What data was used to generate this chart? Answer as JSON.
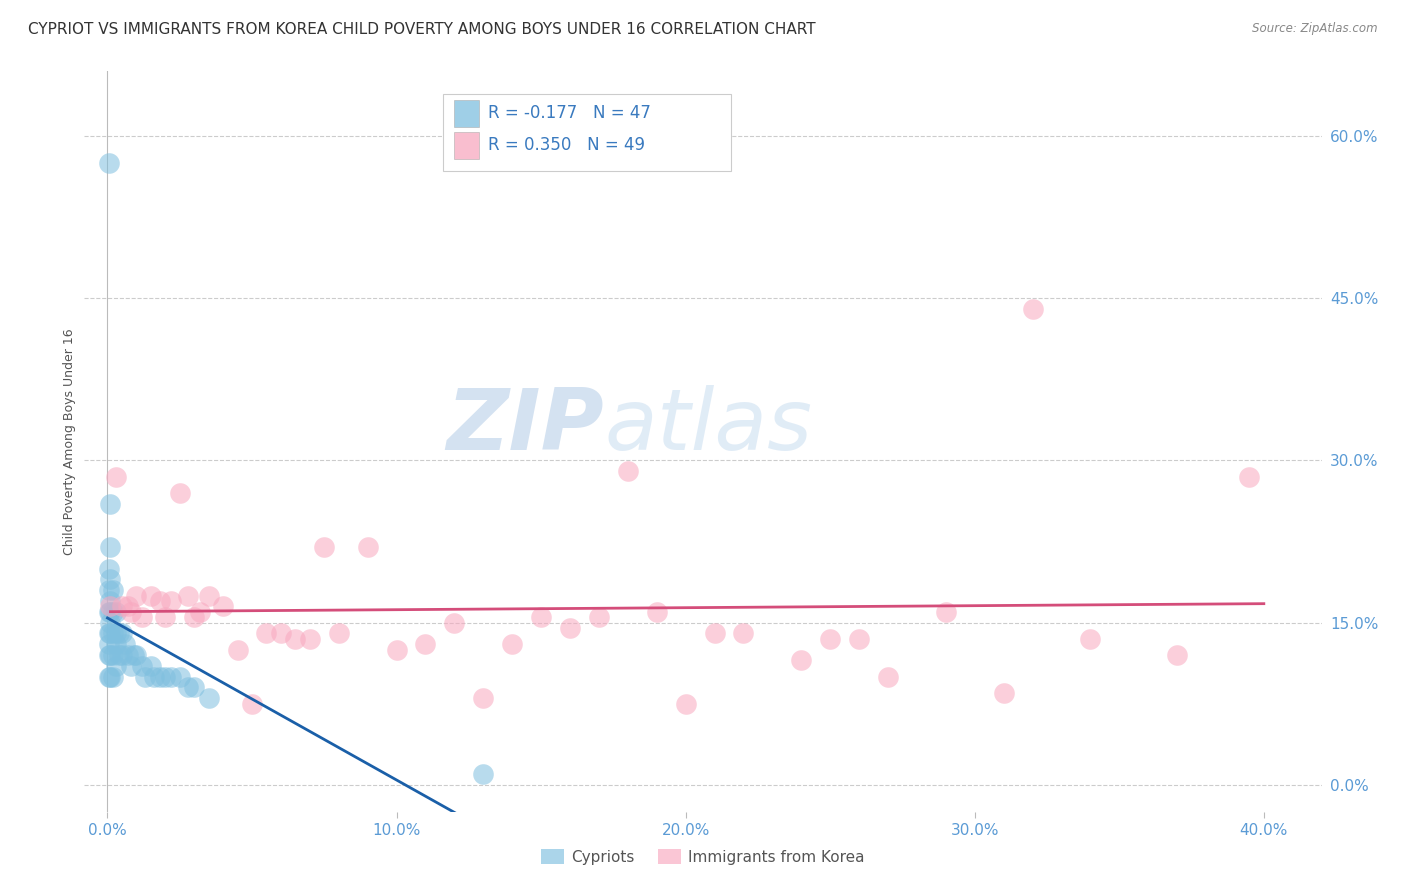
{
  "title": "CYPRIOT VS IMMIGRANTS FROM KOREA CHILD POVERTY AMONG BOYS UNDER 16 CORRELATION CHART",
  "source": "Source: ZipAtlas.com",
  "xlabel_ticks": [
    "0.0%",
    "10.0%",
    "20.0%",
    "30.0%",
    "40.0%"
  ],
  "ylabel_ticks": [
    "0.0%",
    "15.0%",
    "30.0%",
    "45.0%",
    "60.0%"
  ],
  "xlabel_tick_vals": [
    0.0,
    0.1,
    0.2,
    0.3,
    0.4
  ],
  "ylabel_tick_vals": [
    0.0,
    0.15,
    0.3,
    0.45,
    0.6
  ],
  "ylabel": "Child Poverty Among Boys Under 16",
  "legend_label1": "Cypriots",
  "legend_label2": "Immigrants from Korea",
  "watermark_zip": "ZIP",
  "watermark_atlas": "atlas",
  "R1": "-0.177",
  "N1": "47",
  "R2": "0.350",
  "N2": "49",
  "cypriot_color": "#7fbfdf",
  "korea_color": "#f8a8bf",
  "cypriot_line_color": "#1a5fa8",
  "korea_line_color": "#d44d7a",
  "cypriot_x": [
    0.0005,
    0.0005,
    0.0005,
    0.0005,
    0.0005,
    0.0005,
    0.0005,
    0.0005,
    0.001,
    0.001,
    0.001,
    0.001,
    0.001,
    0.001,
    0.001,
    0.001,
    0.001,
    0.002,
    0.002,
    0.002,
    0.002,
    0.002,
    0.003,
    0.003,
    0.003,
    0.003,
    0.004,
    0.004,
    0.005,
    0.005,
    0.006,
    0.007,
    0.008,
    0.009,
    0.01,
    0.012,
    0.013,
    0.015,
    0.016,
    0.018,
    0.02,
    0.022,
    0.025,
    0.028,
    0.03,
    0.035,
    0.13
  ],
  "cypriot_y": [
    0.575,
    0.2,
    0.18,
    0.16,
    0.14,
    0.13,
    0.12,
    0.1,
    0.26,
    0.22,
    0.19,
    0.17,
    0.16,
    0.15,
    0.14,
    0.12,
    0.1,
    0.18,
    0.16,
    0.14,
    0.12,
    0.1,
    0.16,
    0.14,
    0.13,
    0.11,
    0.14,
    0.12,
    0.14,
    0.12,
    0.13,
    0.12,
    0.11,
    0.12,
    0.12,
    0.11,
    0.1,
    0.11,
    0.1,
    0.1,
    0.1,
    0.1,
    0.1,
    0.09,
    0.09,
    0.08,
    0.01
  ],
  "korea_x": [
    0.001,
    0.003,
    0.005,
    0.007,
    0.008,
    0.01,
    0.012,
    0.015,
    0.018,
    0.02,
    0.022,
    0.025,
    0.028,
    0.03,
    0.032,
    0.035,
    0.04,
    0.045,
    0.05,
    0.055,
    0.06,
    0.065,
    0.07,
    0.075,
    0.08,
    0.09,
    0.1,
    0.11,
    0.12,
    0.13,
    0.14,
    0.15,
    0.16,
    0.17,
    0.18,
    0.19,
    0.2,
    0.21,
    0.22,
    0.24,
    0.25,
    0.26,
    0.27,
    0.29,
    0.31,
    0.32,
    0.34,
    0.37,
    0.395
  ],
  "korea_y": [
    0.165,
    0.285,
    0.165,
    0.165,
    0.16,
    0.175,
    0.155,
    0.175,
    0.17,
    0.155,
    0.17,
    0.27,
    0.175,
    0.155,
    0.16,
    0.175,
    0.165,
    0.125,
    0.075,
    0.14,
    0.14,
    0.135,
    0.135,
    0.22,
    0.14,
    0.22,
    0.125,
    0.13,
    0.15,
    0.08,
    0.13,
    0.155,
    0.145,
    0.155,
    0.29,
    0.16,
    0.075,
    0.14,
    0.14,
    0.115,
    0.135,
    0.135,
    0.1,
    0.16,
    0.085,
    0.44,
    0.135,
    0.12,
    0.285
  ],
  "background_color": "#ffffff",
  "grid_color": "#cccccc",
  "tick_color": "#5b9bd5",
  "title_fontsize": 11,
  "axis_label_fontsize": 9,
  "tick_fontsize": 11,
  "legend_text_color": "#3a7abf",
  "legend_text_fontsize": 12
}
